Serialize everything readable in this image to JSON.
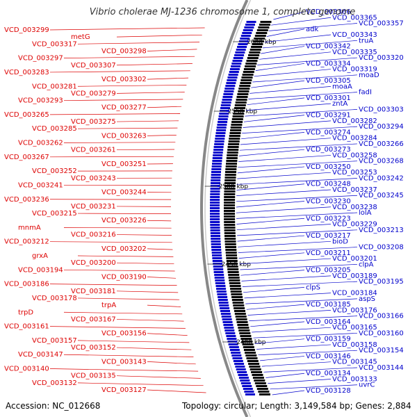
{
  "header": {
    "title": "Vibrio cholerae MJ-1236 chromosome 1, complete genome"
  },
  "footer": {
    "accession": "Accession: NC_012668",
    "summary": "Topology: circular; Length: 3,149,584 bp; Genes: 2,884"
  },
  "colors": {
    "forward": "#dd0000",
    "reverse": "#0000cc",
    "backbone": "#888888",
    "tick": "#22aa22"
  },
  "ticks": [
    {
      "label": "2600 kbp"
    },
    {
      "label": "2550 kbp"
    },
    {
      "label": "2500 kbp"
    },
    {
      "label": "2450 kbp"
    },
    {
      "label": "2400 kbp"
    }
  ],
  "forward_labels": [
    "VCD_003299",
    "metG",
    "VCD_003317",
    "VCD_003298",
    "VCD_003297",
    "VCD_003307",
    "VCD_003283",
    "VCD_003302",
    "VCD_003281",
    "VCD_003279",
    "VCD_003293",
    "VCD_003277",
    "VCD_003265",
    "VCD_003275",
    "VCD_003285",
    "VCD_003263",
    "VCD_003262",
    "VCD_003261",
    "VCD_003267",
    "VCD_003251",
    "VCD_003252",
    "VCD_003243",
    "VCD_003241",
    "VCD_003244",
    "VCD_003236",
    "VCD_003231",
    "VCD_003215",
    "VCD_003226",
    "mnmA",
    "VCD_003216",
    "VCD_003212",
    "VCD_003202",
    "grxA",
    "VCD_003200",
    "VCD_003194",
    "VCD_003190",
    "VCD_003186",
    "VCD_003181",
    "VCD_003178",
    "trpA",
    "trpD",
    "VCD_003167",
    "VCD_003161",
    "VCD_003156",
    "VCD_003157",
    "VCD_003152",
    "VCD_003147",
    "VCD_003143",
    "VCD_003140",
    "VCD_003135",
    "VCD_003132",
    "VCD_003127"
  ],
  "reverse_labels": [
    "VCD_003366",
    "VCD_003365",
    "VCD_003357",
    "adk",
    "VCD_003343",
    "truA",
    "VCD_003342",
    "VCD_003335",
    "VCD_003320",
    "VCD_003334",
    "VCD_003319",
    "moaD",
    "VCD_003305",
    "moaA",
    "fadI",
    "VCD_003301",
    "zntA",
    "VCD_003303",
    "VCD_003291",
    "VCD_003282",
    "VCD_003294",
    "VCD_003274",
    "VCD_003284",
    "VCD_003266",
    "VCD_003273",
    "VCD_003258",
    "VCD_003268",
    "VCD_003250",
    "VCD_003253",
    "VCD_003242",
    "VCD_003248",
    "VCD_003237",
    "VCD_003245",
    "VCD_003230",
    "VCD_003238",
    "lolA",
    "VCD_003223",
    "VCD_003229",
    "VCD_003213",
    "VCD_003217",
    "bioD",
    "VCD_003208",
    "VCD_003211",
    "VCD_003201",
    "clpA",
    "VCD_003205",
    "VCD_003189",
    "VCD_003195",
    "clpS",
    "VCD_003184",
    "aspS",
    "VCD_003185",
    "VCD_003176",
    "VCD_003166",
    "VCD_003164",
    "VCD_003165",
    "VCD_003160",
    "VCD_003159",
    "VCD_003158",
    "VCD_003154",
    "VCD_003146",
    "VCD_003145",
    "VCD_003144",
    "VCD_003134",
    "VCD_003133",
    "uvrC",
    "VCD_003128"
  ]
}
